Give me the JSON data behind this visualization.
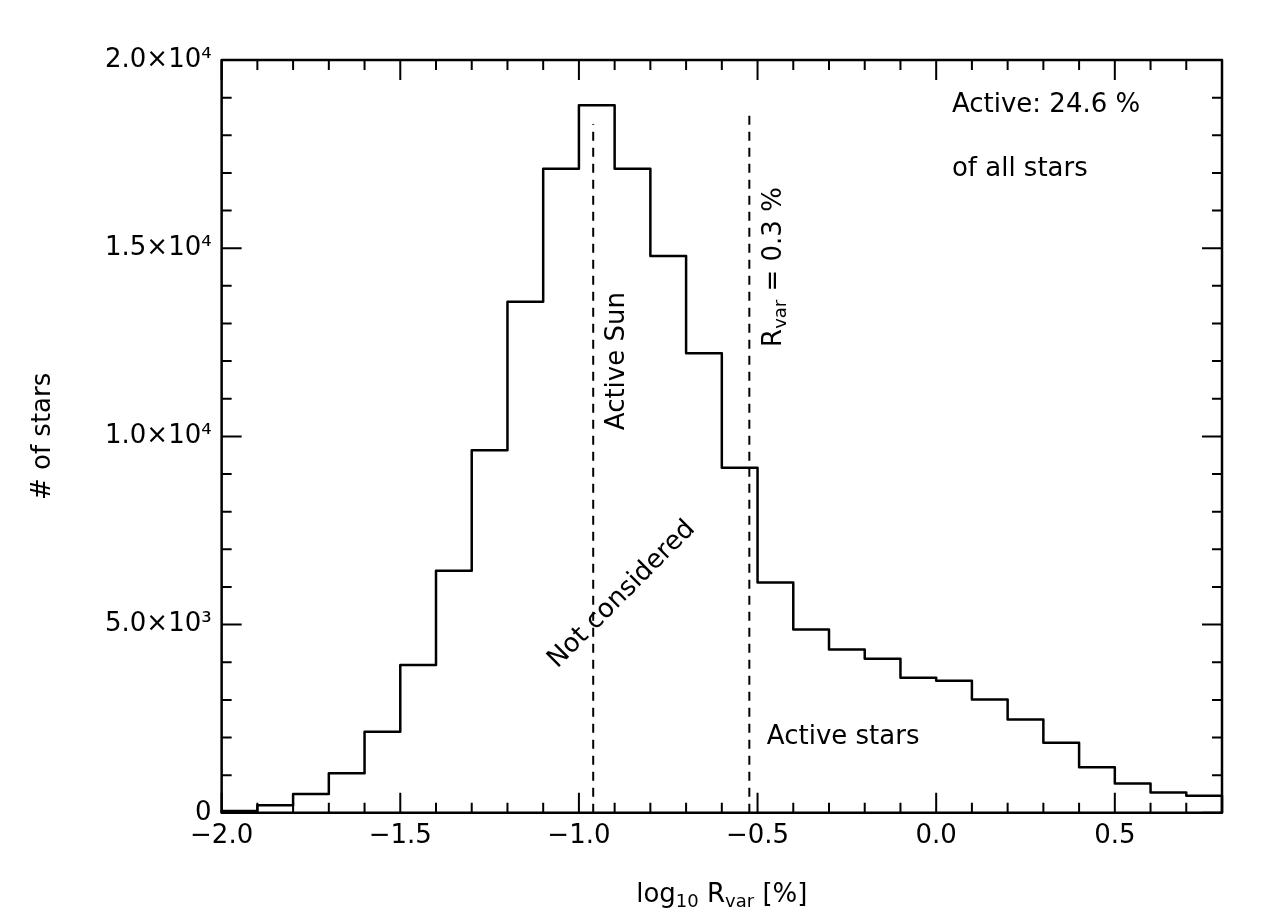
{
  "chart_data": {
    "type": "histogram",
    "xlabel": "log$_{10}$ R$_{var}$ [%]",
    "ylabel": "# of stars",
    "color": "#000000",
    "bins": [
      -2.0,
      -1.9,
      -1.8,
      -1.7,
      -1.6,
      -1.5,
      -1.4,
      -1.3,
      -1.2,
      -1.1,
      -1.0,
      -0.9,
      -0.8,
      -0.7,
      -0.6,
      -0.5,
      -0.4,
      -0.3,
      -0.2,
      -0.1,
      0.0,
      0.1,
      0.2,
      0.3,
      0.4,
      0.5,
      0.6,
      0.7,
      0.8
    ],
    "values": [
      50,
      200,
      500,
      1050,
      2150,
      3930,
      6430,
      9630,
      13580,
      17110,
      18800,
      17110,
      14790,
      12210,
      9170,
      6120,
      4870,
      4340,
      4090,
      3590,
      3510,
      3010,
      2480,
      1860,
      1210,
      780,
      540,
      450
    ],
    "xlim": [
      -2.0,
      0.8
    ],
    "xticks": [
      {
        "value": -2.0,
        "label": "−2.0"
      },
      {
        "value": -1.9,
        "label": null
      },
      {
        "value": -1.8,
        "label": null
      },
      {
        "value": -1.7,
        "label": null
      },
      {
        "value": -1.6,
        "label": null
      },
      {
        "value": -1.5,
        "label": "−1.5"
      },
      {
        "value": -1.4,
        "label": null
      },
      {
        "value": -1.3,
        "label": null
      },
      {
        "value": -1.2,
        "label": null
      },
      {
        "value": -1.1,
        "label": null
      },
      {
        "value": -1.0,
        "label": "−1.0"
      },
      {
        "value": -0.9,
        "label": null
      },
      {
        "value": -0.8,
        "label": null
      },
      {
        "value": -0.7,
        "label": null
      },
      {
        "value": -0.6,
        "label": null
      },
      {
        "value": -0.5,
        "label": "−0.5"
      },
      {
        "value": -0.4,
        "label": null
      },
      {
        "value": -0.3,
        "label": null
      },
      {
        "value": -0.2,
        "label": null
      },
      {
        "value": -0.1,
        "label": null
      },
      {
        "value": 0.0,
        "label": "0.0"
      },
      {
        "value": 0.1,
        "label": null
      },
      {
        "value": 0.2,
        "label": null
      },
      {
        "value": 0.3,
        "label": null
      },
      {
        "value": 0.4,
        "label": null
      },
      {
        "value": 0.5,
        "label": "0.5"
      },
      {
        "value": 0.6,
        "label": null
      },
      {
        "value": 0.7,
        "label": null
      },
      {
        "value": 0.8,
        "label": null
      }
    ],
    "ylim": [
      0,
      20000
    ],
    "yticks": [
      0,
      {
        "value": 1000,
        "label": null
      },
      {
        "value": 2000,
        "label": null
      },
      {
        "value": 3000,
        "label": null
      },
      {
        "value": 4000,
        "label": null
      },
      {
        "value": 5000,
        "label": "5.0×10³"
      },
      {
        "value": 6000,
        "label": null
      },
      {
        "value": 7000,
        "label": null
      },
      {
        "value": 8000,
        "label": null
      },
      {
        "value": 9000,
        "label": null
      },
      {
        "value": 10000,
        "label": "1.0×10⁴"
      },
      {
        "value": 11000,
        "label": null
      },
      {
        "value": 12000,
        "label": null
      },
      {
        "value": 13000,
        "label": null
      },
      {
        "value": 14000,
        "label": null
      },
      {
        "value": 15000,
        "label": "1.5×10⁴"
      },
      {
        "value": 16000,
        "label": null
      },
      {
        "value": 17000,
        "label": null
      },
      {
        "value": 18000,
        "label": null
      },
      {
        "value": 19000,
        "label": null
      },
      {
        "value": 20000,
        "label": "2.0×10⁴"
      }
    ],
    "ref_lines": [
      {
        "axis": "x",
        "value": -0.96,
        "label": "Active Sun",
        "line_style": "dashed"
      },
      {
        "axis": "x",
        "value": -0.523,
        "line_style": "dashed"
      }
    ],
    "annotations": [
      "Not considered",
      "Active stars",
      "Active: 24.6 %",
      "of all stars",
      "R$_{var}$ = 0.3 %"
    ]
  }
}
